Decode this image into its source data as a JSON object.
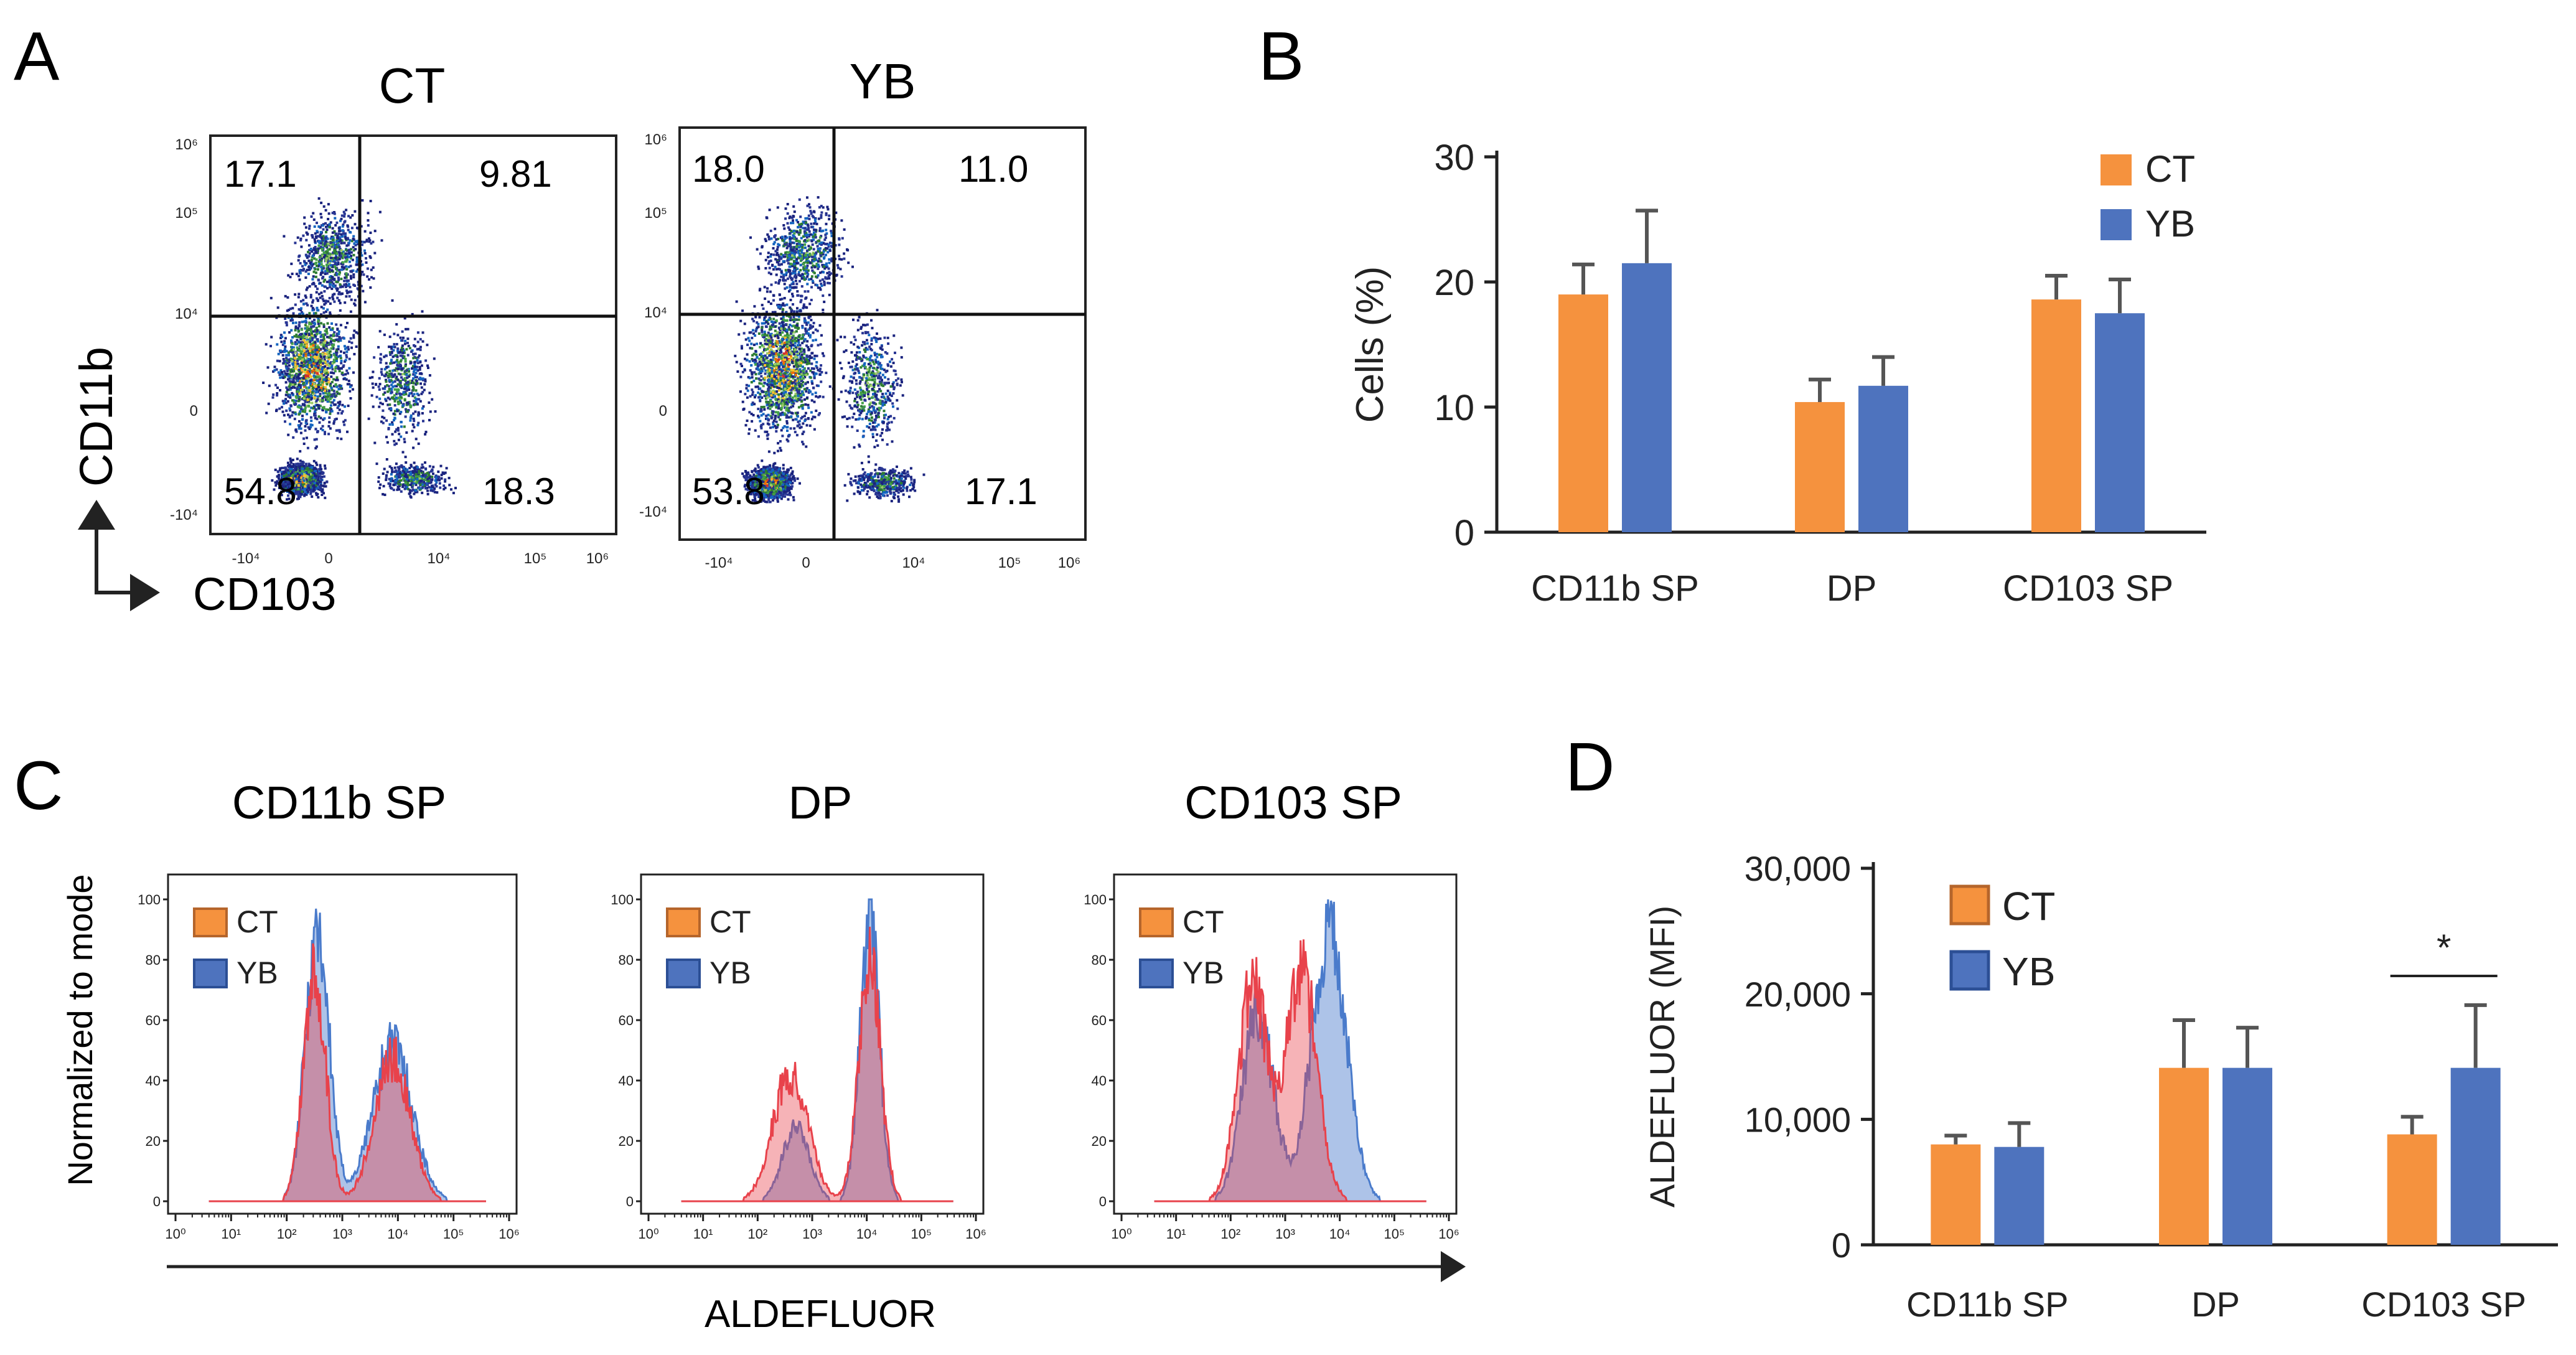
{
  "colors": {
    "ct": "#F5923E",
    "yb": "#4E73BE",
    "ct_hist": "#E8424B",
    "yb_hist": "#4A7BCB",
    "overlap": "#9A7EA8",
    "err": "#555555",
    "axis": "#222222"
  },
  "panel_letters": {
    "a": "A",
    "b": "B",
    "c": "C",
    "d": "D"
  },
  "panel_a": {
    "plots": [
      {
        "title": "CT",
        "quadrants": {
          "ul": "17.1",
          "ur": "9.81",
          "ll": "54.8",
          "lr": "18.3"
        }
      },
      {
        "title": "YB",
        "quadrants": {
          "ul": "18.0",
          "ur": "11.0",
          "ll": "53.8",
          "lr": "17.1"
        }
      }
    ],
    "x_axis_label": "CD103",
    "y_axis_label": "CD11b",
    "x_ticks": [
      "-10⁴",
      "0",
      "10⁴",
      "10⁵",
      "10⁶"
    ],
    "y_ticks": [
      "10⁶",
      "10⁵",
      "10⁴",
      "0",
      "-10⁴"
    ]
  },
  "panel_c": {
    "titles": [
      "CD11b SP",
      "DP",
      "CD103 SP"
    ],
    "y_label": "Normalized to mode",
    "x_label": "ALDEFLUOR",
    "y_ticks": [
      "100",
      "80",
      "60",
      "40",
      "20",
      "0"
    ],
    "x_ticks": [
      "10⁰",
      "10¹",
      "10²",
      "10³",
      "10⁴",
      "10⁵",
      "10⁶"
    ],
    "legend": [
      "CT",
      "YB"
    ],
    "peaks": [
      {
        "ct": [
          {
            "c": 2.5,
            "w": 0.28,
            "h": 0.8
          },
          {
            "c": 3.9,
            "w": 0.45,
            "h": 0.5
          }
        ],
        "yb": [
          {
            "c": 2.55,
            "w": 0.3,
            "h": 0.95
          },
          {
            "c": 3.9,
            "w": 0.5,
            "h": 0.55
          }
        ]
      },
      {
        "ct": [
          {
            "c": 2.6,
            "w": 0.45,
            "h": 0.45
          },
          {
            "c": 4.05,
            "w": 0.28,
            "h": 0.85
          }
        ],
        "yb": [
          {
            "c": 2.7,
            "w": 0.35,
            "h": 0.25
          },
          {
            "c": 4.05,
            "w": 0.25,
            "h": 1.0
          }
        ]
      },
      {
        "ct": [
          {
            "c": 2.4,
            "w": 0.38,
            "h": 0.75
          },
          {
            "c": 3.3,
            "w": 0.4,
            "h": 0.8
          }
        ],
        "yb": [
          {
            "c": 2.5,
            "w": 0.4,
            "h": 0.65
          },
          {
            "c": 3.8,
            "w": 0.45,
            "h": 0.95
          }
        ]
      }
    ]
  },
  "chart_data": [
    {
      "type": "bar",
      "panel": "B",
      "categories": [
        "CD11b SP",
        "DP",
        "CD103 SP"
      ],
      "series": [
        {
          "name": "CT",
          "values": [
            19.0,
            10.4,
            18.6
          ],
          "errors": [
            2.4,
            1.8,
            1.9
          ]
        },
        {
          "name": "YB",
          "values": [
            21.5,
            11.7,
            17.5
          ],
          "errors": [
            4.2,
            2.3,
            2.7
          ]
        }
      ],
      "ylabel": "Cells (%)",
      "ylim": [
        0,
        30
      ],
      "yticks": [
        0,
        10,
        20,
        30
      ],
      "ytick_labels": [
        "0",
        "10",
        "20",
        "30"
      ],
      "legend": [
        "CT",
        "YB"
      ],
      "legend_position": "top-right"
    },
    {
      "type": "bar",
      "panel": "D",
      "categories": [
        "CD11b SP",
        "DP",
        "CD103 SP"
      ],
      "series": [
        {
          "name": "CT",
          "values": [
            8000,
            14100,
            8800
          ],
          "errors": [
            700,
            3800,
            1400
          ]
        },
        {
          "name": "YB",
          "values": [
            7800,
            14100,
            14100
          ],
          "errors": [
            1900,
            3200,
            5000
          ]
        }
      ],
      "ylabel": "ALDEFLUOR (MFI)",
      "ylim": [
        0,
        30000
      ],
      "yticks": [
        0,
        10000,
        20000,
        30000
      ],
      "ytick_labels": [
        "0",
        "10,000",
        "20,000",
        "30,000"
      ],
      "legend": [
        "CT",
        "YB"
      ],
      "legend_position": "top-left",
      "annotation": "*"
    }
  ]
}
